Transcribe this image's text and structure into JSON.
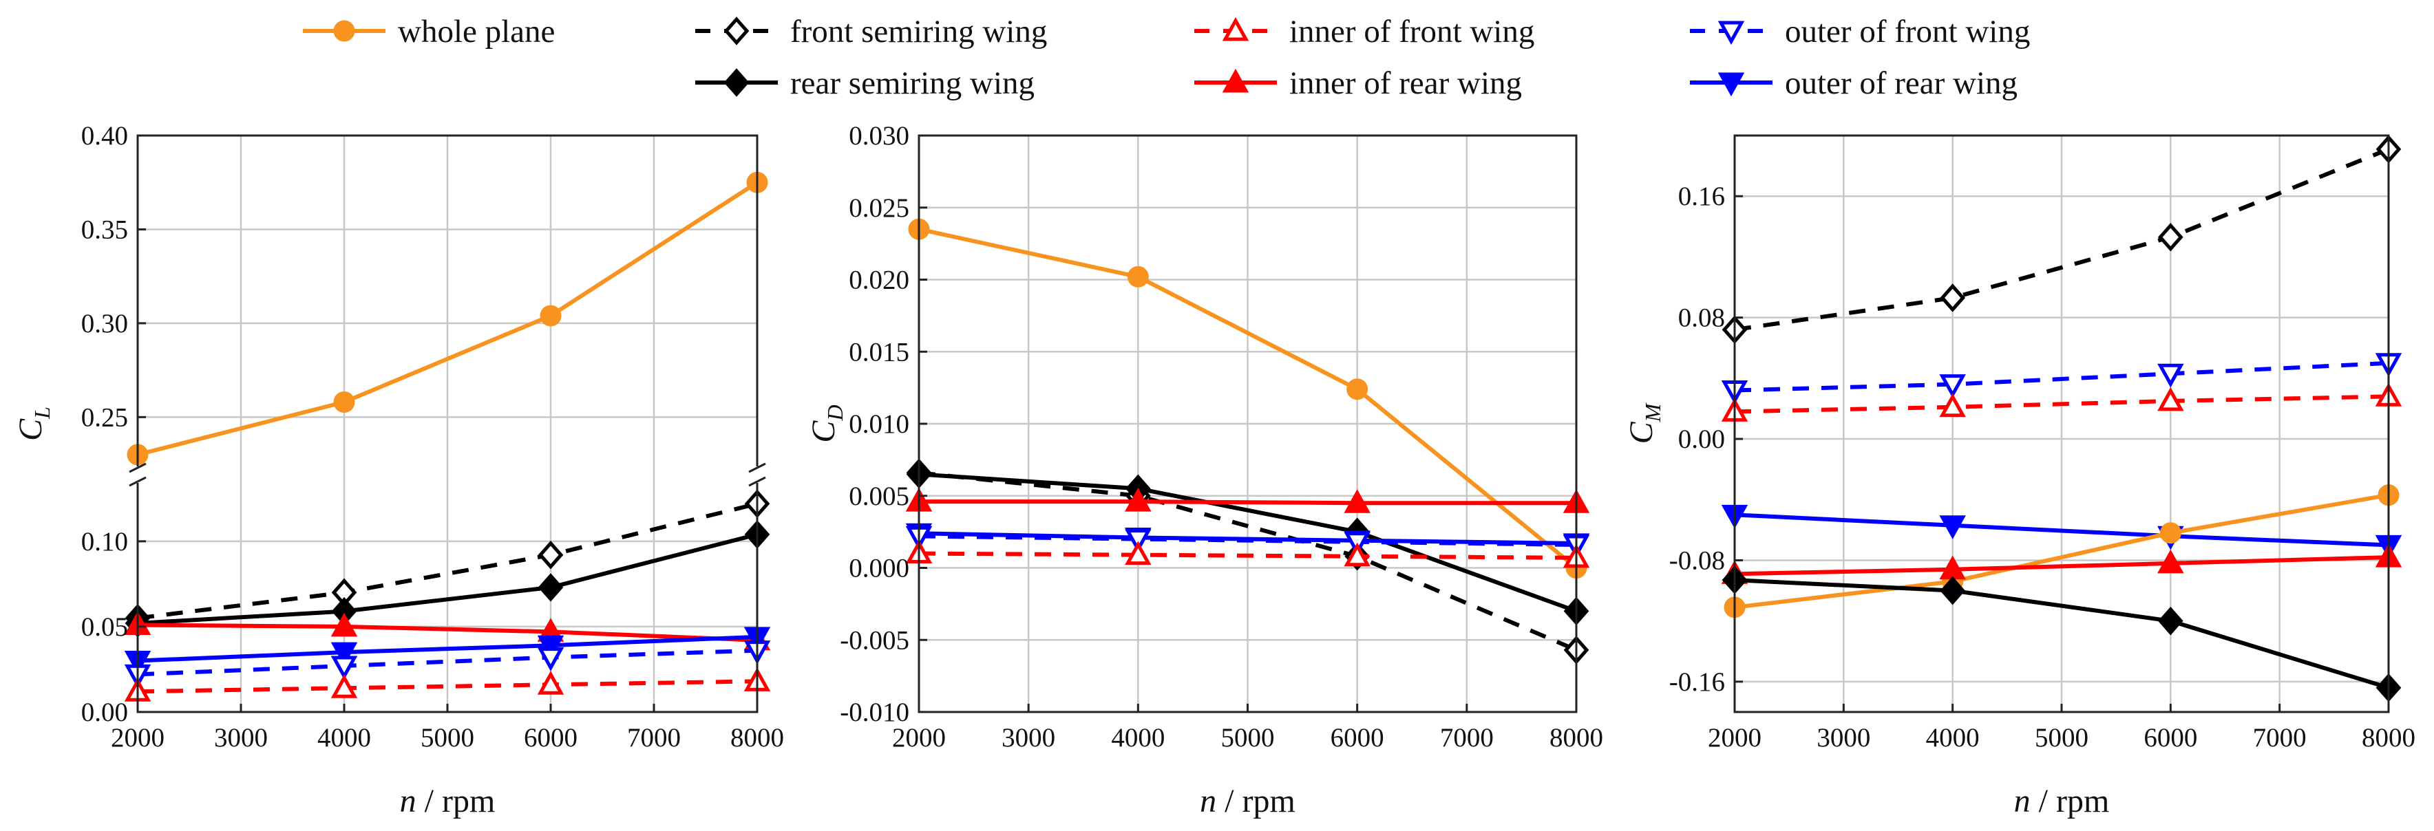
{
  "legend": [
    {
      "key": "whole",
      "label": "whole plane",
      "color": "#F7931E",
      "dash": false,
      "marker": "circle",
      "filled": true
    },
    {
      "key": "front",
      "label": "front semiring wing",
      "color": "#000000",
      "dash": true,
      "marker": "diamond",
      "filled": false
    },
    {
      "key": "inner_front",
      "label": "inner of front wing",
      "color": "#FF0000",
      "dash": true,
      "marker": "triangle-up",
      "filled": false
    },
    {
      "key": "outer_front",
      "label": "outer of front wing",
      "color": "#0000FF",
      "dash": true,
      "marker": "triangle-down",
      "filled": false
    },
    {
      "key": "rear",
      "label": "rear  semiring wing",
      "color": "#000000",
      "dash": false,
      "marker": "diamond",
      "filled": true
    },
    {
      "key": "inner_rear",
      "label": "inner of  rear  wing",
      "color": "#FF0000",
      "dash": false,
      "marker": "triangle-up",
      "filled": true
    },
    {
      "key": "outer_rear",
      "label": "outer of  rear wing",
      "color": "#0000FF",
      "dash": false,
      "marker": "triangle-down",
      "filled": true
    }
  ],
  "chart_data": [
    {
      "type": "line",
      "ylabel_main": "C",
      "ylabel_sub": "L",
      "xlabel_italic": "n",
      "xlabel_rest": " / rpm",
      "x": [
        2000,
        4000,
        6000,
        8000
      ],
      "xticks": [
        2000,
        3000,
        4000,
        5000,
        6000,
        7000,
        8000
      ],
      "axis_break": true,
      "yticks_upper": [
        "0.25",
        "0.30",
        "0.35",
        "0.40"
      ],
      "yticks_lower": [
        "0.00",
        "0.05",
        "0.10"
      ],
      "series": [
        {
          "key": "whole",
          "values": [
            0.23,
            0.258,
            0.304,
            0.375
          ]
        },
        {
          "key": "front",
          "values": [
            0.055,
            0.07,
            0.092,
            0.122
          ]
        },
        {
          "key": "rear",
          "values": [
            0.052,
            0.059,
            0.073,
            0.104
          ]
        },
        {
          "key": "inner_rear",
          "values": [
            0.051,
            0.05,
            0.047,
            0.042
          ]
        },
        {
          "key": "outer_rear",
          "values": [
            0.03,
            0.035,
            0.039,
            0.044
          ]
        },
        {
          "key": "outer_front",
          "values": [
            0.022,
            0.027,
            0.032,
            0.036
          ]
        },
        {
          "key": "inner_front",
          "values": [
            0.012,
            0.014,
            0.016,
            0.018
          ]
        }
      ]
    },
    {
      "type": "line",
      "ylabel_main": "C",
      "ylabel_sub": "D",
      "xlabel_italic": "n",
      "xlabel_rest": " / rpm",
      "x": [
        2000,
        4000,
        6000,
        8000
      ],
      "xticks": [
        2000,
        3000,
        4000,
        5000,
        6000,
        7000,
        8000
      ],
      "ylim": [
        -0.01,
        0.03
      ],
      "yticks": [
        "-0.010",
        "-0.005",
        "0.000",
        "0.005",
        "0.010",
        "0.015",
        "0.020",
        "0.025",
        "0.030"
      ],
      "series": [
        {
          "key": "whole",
          "values": [
            0.0235,
            0.0202,
            0.0124,
            0.0
          ]
        },
        {
          "key": "front",
          "values": [
            0.0066,
            0.005,
            0.0008,
            -0.0057
          ]
        },
        {
          "key": "rear",
          "values": [
            0.0065,
            0.0055,
            0.0025,
            -0.003
          ]
        },
        {
          "key": "inner_rear",
          "values": [
            0.0046,
            0.0046,
            0.0045,
            0.0045
          ]
        },
        {
          "key": "outer_rear",
          "values": [
            0.0024,
            0.0021,
            0.0019,
            0.0017
          ]
        },
        {
          "key": "outer_front",
          "values": [
            0.0022,
            0.002,
            0.0018,
            0.0016
          ]
        },
        {
          "key": "inner_front",
          "values": [
            0.001,
            0.0009,
            0.0008,
            0.0007
          ]
        }
      ]
    },
    {
      "type": "line",
      "ylabel_main": "C",
      "ylabel_sub": "M",
      "xlabel_italic": "n",
      "xlabel_rest": " / rpm",
      "x": [
        2000,
        4000,
        6000,
        8000
      ],
      "xticks": [
        2000,
        3000,
        4000,
        5000,
        6000,
        7000,
        8000
      ],
      "ylim": [
        -0.18,
        0.2
      ],
      "yticks": [
        "-0.16",
        "-0.08",
        "0.00",
        "0.08",
        "0.16"
      ],
      "series": [
        {
          "key": "front",
          "values": [
            0.072,
            0.093,
            0.133,
            0.191
          ]
        },
        {
          "key": "outer_front",
          "values": [
            0.032,
            0.036,
            0.043,
            0.05
          ]
        },
        {
          "key": "inner_front",
          "values": [
            0.018,
            0.021,
            0.025,
            0.028
          ]
        },
        {
          "key": "outer_rear",
          "values": [
            -0.05,
            -0.057,
            -0.064,
            -0.07
          ]
        },
        {
          "key": "whole",
          "values": [
            -0.111,
            -0.094,
            -0.062,
            -0.037
          ]
        },
        {
          "key": "inner_rear",
          "values": [
            -0.089,
            -0.086,
            -0.082,
            -0.078
          ]
        },
        {
          "key": "rear",
          "values": [
            -0.093,
            -0.1,
            -0.12,
            -0.164
          ]
        }
      ]
    }
  ]
}
